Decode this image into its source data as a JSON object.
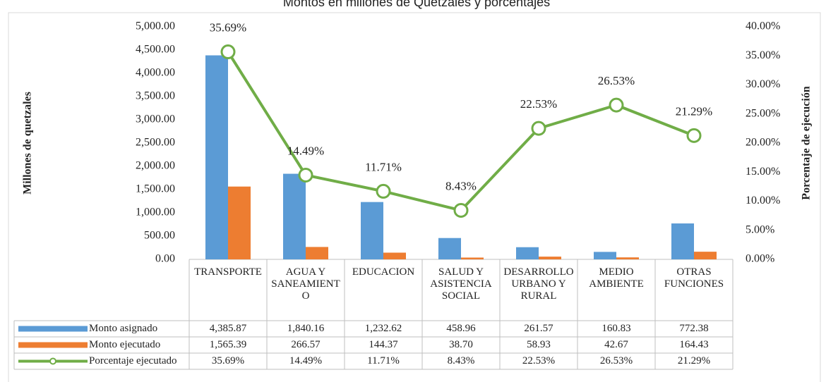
{
  "chart_data": {
    "type": "bar",
    "title": "Montos en millones de Quetzales y porcentajes",
    "y_label": "Millones de quetzales",
    "y2_label": "Porcentaje de ejecución",
    "categories": [
      "TRANSPORTE",
      "AGUA Y SANEAMIENTO",
      "EDUCACION",
      "SALUD Y ASISTENCIA SOCIAL",
      "DESARROLLO URBANO Y RURAL",
      "MEDIO AMBIENTE",
      "OTRAS FUNCIONES"
    ],
    "series": [
      {
        "name": "Monto asignado",
        "type": "bar",
        "color": "#5b9bd5",
        "values": [
          4385.87,
          1840.16,
          1232.62,
          458.96,
          261.57,
          160.83,
          772.38
        ],
        "value_labels": [
          "4,385.87",
          "1,840.16",
          "1,232.62",
          "458.96",
          "261.57",
          "160.83",
          "772.38"
        ]
      },
      {
        "name": "Monto ejecutado",
        "type": "bar",
        "color": "#ed7d31",
        "values": [
          1565.39,
          266.57,
          144.37,
          38.7,
          58.93,
          42.67,
          164.43
        ],
        "value_labels": [
          "1,565.39",
          "266.57",
          "144.37",
          "38.70",
          "58.93",
          "42.67",
          "164.43"
        ]
      },
      {
        "name": "Porcentaje ejecutado",
        "type": "line",
        "axis": "y2",
        "color": "#70ad47",
        "values": [
          35.69,
          14.49,
          11.71,
          8.43,
          22.53,
          26.53,
          21.29
        ],
        "value_labels": [
          "35.69%",
          "14.49%",
          "11.71%",
          "8.43%",
          "22.53%",
          "26.53%",
          "21.29%"
        ]
      }
    ],
    "ylim": [
      0,
      5000
    ],
    "yticks": [
      {
        "value": 0,
        "label": "0.00"
      },
      {
        "value": 500,
        "label": "500.00"
      },
      {
        "value": 1000,
        "label": "1,000.00"
      },
      {
        "value": 1500,
        "label": "1,500.00"
      },
      {
        "value": 2000,
        "label": "2,000.00"
      },
      {
        "value": 2500,
        "label": "2,500.00"
      },
      {
        "value": 3000,
        "label": "3,000.00"
      },
      {
        "value": 3500,
        "label": "3,500.00"
      },
      {
        "value": 4000,
        "label": "4,000.00"
      },
      {
        "value": 4500,
        "label": "4,500.00"
      },
      {
        "value": 5000,
        "label": "5,000.00"
      }
    ],
    "y2lim": [
      0,
      40
    ],
    "y2ticks": [
      {
        "value": 0,
        "label": "0.00%"
      },
      {
        "value": 5,
        "label": "5.00%"
      },
      {
        "value": 10,
        "label": "10.00%"
      },
      {
        "value": 15,
        "label": "15.00%"
      },
      {
        "value": 20,
        "label": "20.00%"
      },
      {
        "value": 25,
        "label": "25.00%"
      },
      {
        "value": 30,
        "label": "30.00%"
      },
      {
        "value": 35,
        "label": "35.00%"
      },
      {
        "value": 40,
        "label": "40.00%"
      }
    ],
    "grid": false,
    "data_table": true
  }
}
